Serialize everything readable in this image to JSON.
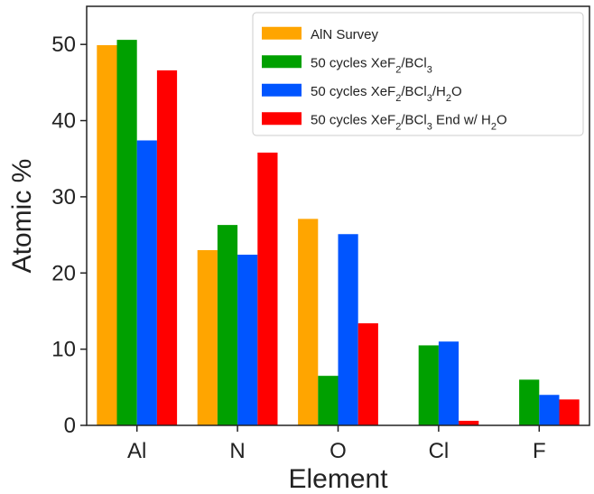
{
  "chart_data": {
    "type": "bar",
    "xlabel": "Element",
    "ylabel": "Atomic %",
    "categories": [
      "Al",
      "N",
      "O",
      "Cl",
      "F"
    ],
    "ylim": [
      0,
      55
    ],
    "yticks": [
      0,
      10,
      20,
      30,
      40,
      50
    ],
    "legend_position": "top-right",
    "grid": false,
    "series": [
      {
        "name": "AlN Survey",
        "name_parts": [
          {
            "t": "AlN Survey"
          }
        ],
        "color": "#FFA500",
        "values": [
          49.9,
          23.0,
          27.1,
          0,
          0
        ]
      },
      {
        "name": "50 cycles XeF2/BCl3",
        "name_parts": [
          {
            "t": "50 cycles XeF"
          },
          {
            "t": "2",
            "sub": true
          },
          {
            "t": "/BCl"
          },
          {
            "t": "3",
            "sub": true
          }
        ],
        "color": "#00A000",
        "values": [
          50.6,
          26.3,
          6.5,
          10.5,
          6.0
        ]
      },
      {
        "name": "50 cycles XeF2/BCl3/H2O",
        "name_parts": [
          {
            "t": "50 cycles XeF"
          },
          {
            "t": "2",
            "sub": true
          },
          {
            "t": "/BCl"
          },
          {
            "t": "3",
            "sub": true
          },
          {
            "t": "/H"
          },
          {
            "t": "2",
            "sub": true
          },
          {
            "t": "O"
          }
        ],
        "color": "#0055FF",
        "values": [
          37.4,
          22.4,
          25.1,
          11.0,
          4.0
        ]
      },
      {
        "name": "50 cycles XeF2/BCl3 End w/ H2O",
        "name_parts": [
          {
            "t": "50 cycles XeF"
          },
          {
            "t": "2",
            "sub": true
          },
          {
            "t": "/BCl"
          },
          {
            "t": "3",
            "sub": true
          },
          {
            "t": " End w/ H"
          },
          {
            "t": "2",
            "sub": true
          },
          {
            "t": "O"
          }
        ],
        "color": "#FF0000",
        "values": [
          46.6,
          35.8,
          13.4,
          0.6,
          3.4
        ]
      }
    ]
  }
}
